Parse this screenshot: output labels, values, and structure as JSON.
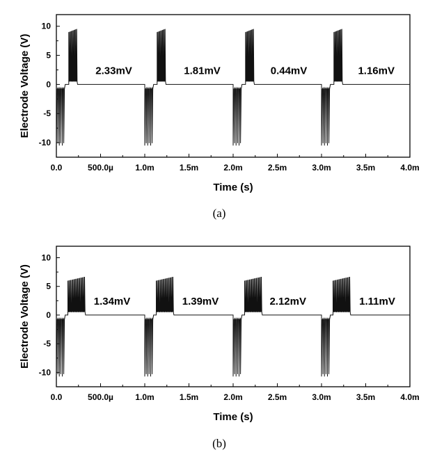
{
  "chart_data": [
    {
      "type": "line",
      "panel_label": "(a)",
      "xlabel": "Time (s)",
      "ylabel": "Electrode Voltage (V)",
      "xlim": [
        0,
        0.004
      ],
      "ylim": [
        -12.5,
        12
      ],
      "x_ticks": [
        0,
        0.0005,
        0.001,
        0.0015,
        0.002,
        0.0025,
        0.003,
        0.0035,
        0.004
      ],
      "x_tick_labels": [
        "0.0",
        "500.0µ",
        "1.0m",
        "1.5m",
        "2.0m",
        "2.5m",
        "3.0m",
        "3.5m",
        "4.0m"
      ],
      "y_ticks": [
        10,
        5,
        0,
        -5,
        -10
      ],
      "y_tick_labels": [
        "10",
        "5",
        "0",
        "-5",
        "-10"
      ],
      "grid": false,
      "series": [
        {
          "stimulation_pulse_trains": [
            {
              "start": 0.0,
              "cathodic_duration": 0.0001,
              "cathodic_peak": -10.5,
              "anodic_start": 0.00014,
              "anodic_duration": 0.0001,
              "anodic_peak": 9.6,
              "anodic_peak_start": 9.0,
              "spikes": 5
            },
            {
              "start": 0.001,
              "cathodic_duration": 0.0001,
              "cathodic_peak": -10.5,
              "anodic_start": 0.00114,
              "anodic_duration": 0.0001,
              "anodic_peak": 9.6,
              "anodic_peak_start": 9.0,
              "spikes": 5
            },
            {
              "start": 0.002,
              "cathodic_duration": 0.0001,
              "cathodic_peak": -10.5,
              "anodic_start": 0.00214,
              "anodic_duration": 0.0001,
              "anodic_peak": 9.6,
              "anodic_peak_start": 9.0,
              "spikes": 5
            },
            {
              "start": 0.003,
              "cathodic_duration": 0.0001,
              "cathodic_peak": -10.5,
              "anodic_start": 0.00314,
              "anodic_duration": 0.0001,
              "anodic_peak": 9.6,
              "anodic_peak_start": 9.0,
              "spikes": 5
            }
          ]
        }
      ],
      "annotations": [
        {
          "text": "2.33mV",
          "x": 0.00065,
          "y": 1.8
        },
        {
          "text": "1.81mV",
          "x": 0.00165,
          "y": 1.8
        },
        {
          "text": "0.44mV",
          "x": 0.00263,
          "y": 1.8
        },
        {
          "text": "1.16mV",
          "x": 0.00362,
          "y": 1.8
        }
      ]
    },
    {
      "type": "line",
      "panel_label": "(b)",
      "xlabel": "Time (s)",
      "ylabel": "Electrode Voltage (V)",
      "xlim": [
        0,
        0.004
      ],
      "ylim": [
        -12.5,
        12
      ],
      "x_ticks": [
        0,
        0.0005,
        0.001,
        0.0015,
        0.002,
        0.0025,
        0.003,
        0.0035,
        0.004
      ],
      "x_tick_labels": [
        "0.0",
        "500.0µ",
        "1.0m",
        "1.5m",
        "2.0m",
        "2.5m",
        "3.0m",
        "3.5m",
        "4.0m"
      ],
      "y_ticks": [
        10,
        5,
        0,
        -5,
        -10
      ],
      "y_tick_labels": [
        "10",
        "5",
        "0",
        "-5",
        "-10"
      ],
      "grid": false,
      "series": [
        {
          "stimulation_pulse_trains": [
            {
              "start": 0.0,
              "cathodic_duration": 0.0001,
              "cathodic_peak": -10.7,
              "anodic_start": 0.00013,
              "anodic_duration": 0.0002,
              "anodic_peak": 6.7,
              "anodic_peak_start": 6.0,
              "spikes": 9
            },
            {
              "start": 0.001,
              "cathodic_duration": 0.0001,
              "cathodic_peak": -10.7,
              "anodic_start": 0.00113,
              "anodic_duration": 0.0002,
              "anodic_peak": 6.7,
              "anodic_peak_start": 6.0,
              "spikes": 9
            },
            {
              "start": 0.002,
              "cathodic_duration": 0.0001,
              "cathodic_peak": -10.7,
              "anodic_start": 0.00213,
              "anodic_duration": 0.0002,
              "anodic_peak": 6.7,
              "anodic_peak_start": 6.0,
              "spikes": 9
            },
            {
              "start": 0.003,
              "cathodic_duration": 0.0001,
              "cathodic_peak": -10.7,
              "anodic_start": 0.00313,
              "anodic_duration": 0.0002,
              "anodic_peak": 6.7,
              "anodic_peak_start": 6.0,
              "spikes": 9
            }
          ]
        }
      ],
      "annotations": [
        {
          "text": "1.34mV",
          "x": 0.00063,
          "y": 1.8
        },
        {
          "text": "1.39mV",
          "x": 0.00163,
          "y": 1.8
        },
        {
          "text": "2.12mV",
          "x": 0.00262,
          "y": 1.8
        },
        {
          "text": "1.11mV",
          "x": 0.00363,
          "y": 1.8
        }
      ]
    }
  ]
}
